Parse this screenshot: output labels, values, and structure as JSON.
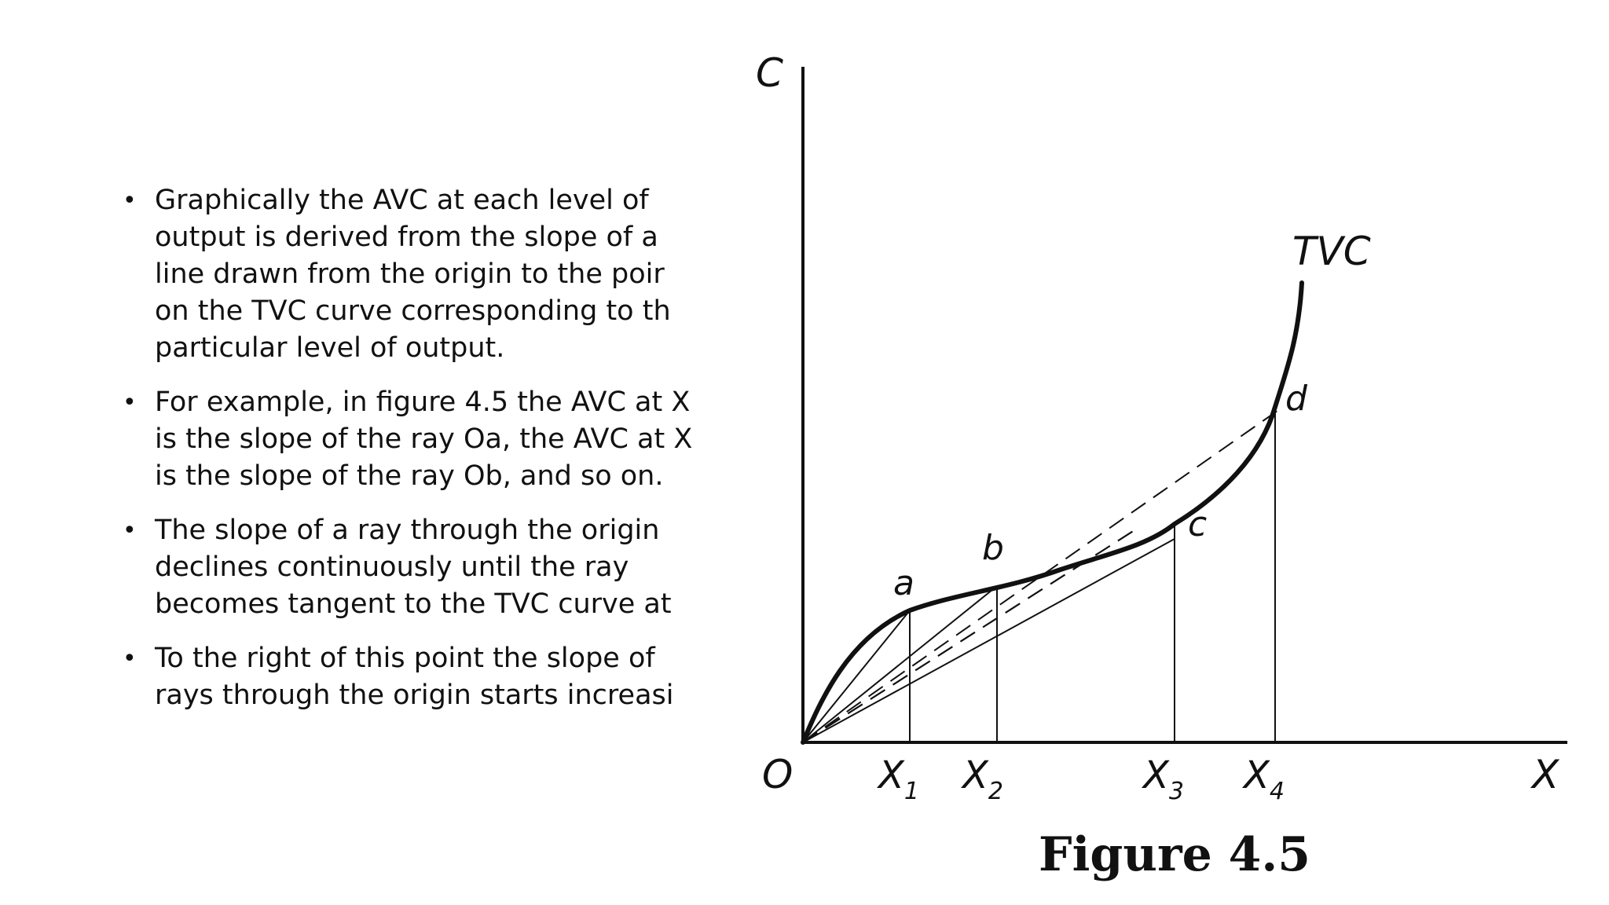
{
  "bullets": [
    {
      "lines": [
        "Graphically the AVC at each level of",
        "output is derived from the slope of a",
        "line drawn from the origin to the poir",
        "on the TVC curve corresponding to th",
        "particular level of output."
      ]
    },
    {
      "lines": [
        "For example, in figure 4.5 the AVC at X",
        "is the slope of the ray Oa, the AVC at X",
        "is the slope of the ray Ob, and so on."
      ]
    },
    {
      "lines": [
        "The slope of a ray through the origin",
        "declines continuously until the ray",
        "becomes tangent to the TVC curve at"
      ]
    },
    {
      "lines": [
        "To the right of this point the slope of",
        "rays through the origin starts increasi"
      ]
    }
  ],
  "bullet_symbol": "•",
  "figure": {
    "y_axis_label": "C",
    "x_axis_label": "X",
    "origin_label": "O",
    "curve_label": "TVC",
    "point_labels": [
      "a",
      "b",
      "c",
      "d"
    ],
    "x_tick_labels": [
      {
        "base": "X",
        "sub": "1"
      },
      {
        "base": "X",
        "sub": "2"
      },
      {
        "base": "X",
        "sub": "3"
      },
      {
        "base": "X",
        "sub": "4"
      }
    ],
    "caption": "Figure 4.5"
  },
  "colors": {
    "ink": "#111111",
    "background": "#ffffff"
  }
}
